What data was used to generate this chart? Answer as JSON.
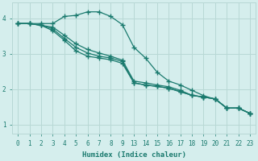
{
  "xlabel": "Humidex (Indice chaleur)",
  "bg_color": "#d5eeed",
  "grid_color": "#b8d8d5",
  "line_color": "#1a7a6e",
  "line_width": 0.9,
  "marker": "+",
  "markersize": 4,
  "markeredgewidth": 1.0,
  "lines": [
    {
      "xi": [
        0,
        1,
        2,
        3,
        4,
        5,
        6,
        7,
        8,
        9,
        10,
        11,
        12,
        13,
        14,
        15,
        16,
        17,
        18,
        19,
        20
      ],
      "y": [
        3.85,
        3.85,
        3.85,
        3.85,
        4.05,
        4.08,
        4.18,
        4.18,
        4.05,
        3.82,
        3.18,
        2.88,
        2.48,
        2.23,
        2.12,
        1.97,
        1.82,
        1.72,
        1.47,
        1.47,
        1.32
      ]
    },
    {
      "xi": [
        0,
        1,
        2,
        3,
        4,
        5,
        6,
        7,
        8,
        9,
        10,
        11,
        12,
        13,
        14,
        15,
        16,
        17,
        18,
        19,
        20
      ],
      "y": [
        3.85,
        3.85,
        3.8,
        3.75,
        3.52,
        3.28,
        3.12,
        3.02,
        2.93,
        2.82,
        2.23,
        2.18,
        2.12,
        2.07,
        1.97,
        1.83,
        1.78,
        1.73,
        1.47,
        1.47,
        1.32
      ]
    },
    {
      "xi": [
        0,
        1,
        2,
        3,
        4,
        5,
        6,
        7,
        8,
        9,
        10,
        11,
        12,
        13,
        14,
        15,
        16,
        17,
        18,
        19,
        20
      ],
      "y": [
        3.85,
        3.85,
        3.8,
        3.7,
        3.43,
        3.18,
        3.02,
        2.93,
        2.88,
        2.78,
        2.18,
        2.12,
        2.08,
        2.03,
        1.93,
        1.83,
        1.78,
        1.73,
        1.47,
        1.47,
        1.32
      ]
    },
    {
      "xi": [
        0,
        1,
        2,
        3,
        4,
        5,
        6,
        7,
        8,
        9,
        10,
        11,
        12,
        13,
        14,
        15,
        16,
        17,
        18,
        19,
        20
      ],
      "y": [
        3.85,
        3.85,
        3.8,
        3.65,
        3.38,
        3.08,
        2.93,
        2.88,
        2.83,
        2.73,
        2.18,
        2.12,
        2.08,
        2.03,
        1.93,
        1.83,
        1.78,
        1.73,
        1.47,
        1.47,
        1.32
      ]
    }
  ],
  "xtick_positions": [
    0,
    1,
    2,
    3,
    4,
    5,
    6,
    7,
    8,
    9,
    10,
    11,
    12,
    13,
    14,
    15,
    16,
    17,
    18,
    19,
    20
  ],
  "xtick_labels": [
    "0",
    "1",
    "2",
    "3",
    "4",
    "5",
    "6",
    "7",
    "8",
    "9",
    "13",
    "14",
    "15",
    "16",
    "17",
    "18",
    "19",
    "20",
    "21",
    "22",
    "23"
  ],
  "yticks": [
    1,
    2,
    3,
    4
  ],
  "ylim": [
    0.75,
    4.45
  ],
  "xlim": [
    -0.5,
    20.5
  ],
  "label_fontsize": 6.5,
  "tick_fontsize": 5.5
}
